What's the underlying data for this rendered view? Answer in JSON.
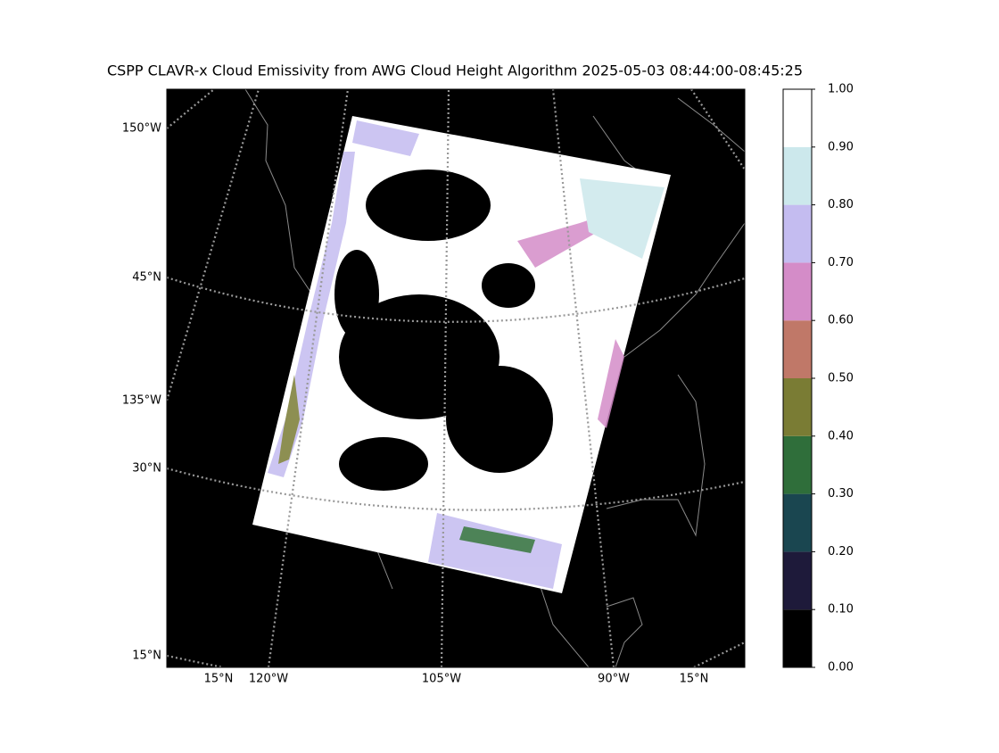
{
  "title": "CSPP CLAVR-x Cloud Emissivity from AWG Cloud Height Algorithm 2025-05-03 08:44:00-08:45:25",
  "map": {
    "left_labels": [
      "150°W",
      "45°N",
      "135°W",
      "30°N",
      "15°N"
    ],
    "bottom_labels": [
      "15°N",
      "120°W",
      "105°W",
      "90°W",
      "15°N"
    ]
  },
  "colorbar": {
    "ticks": [
      {
        "value": 0,
        "label": "0.00"
      },
      {
        "value": 0.1,
        "label": "0.10"
      },
      {
        "value": 0.2,
        "label": "0.20"
      },
      {
        "value": 0.3,
        "label": "0.30"
      },
      {
        "value": 0.4,
        "label": "0.40"
      },
      {
        "value": 0.5,
        "label": "0.50"
      },
      {
        "value": 0.6,
        "label": "0.60"
      },
      {
        "value": 0.7,
        "label": "0.70"
      },
      {
        "value": 0.8,
        "label": "0.80"
      },
      {
        "value": 0.9,
        "label": "0.90"
      },
      {
        "value": 1,
        "label": "1.00"
      }
    ],
    "colors": [
      "#000000",
      "#1e1a3a",
      "#1a4650",
      "#2f6e3a",
      "#7a7c34",
      "#c07868",
      "#d48cc8",
      "#c4bcf0",
      "#cce8ec",
      "#ffffff"
    ]
  }
}
